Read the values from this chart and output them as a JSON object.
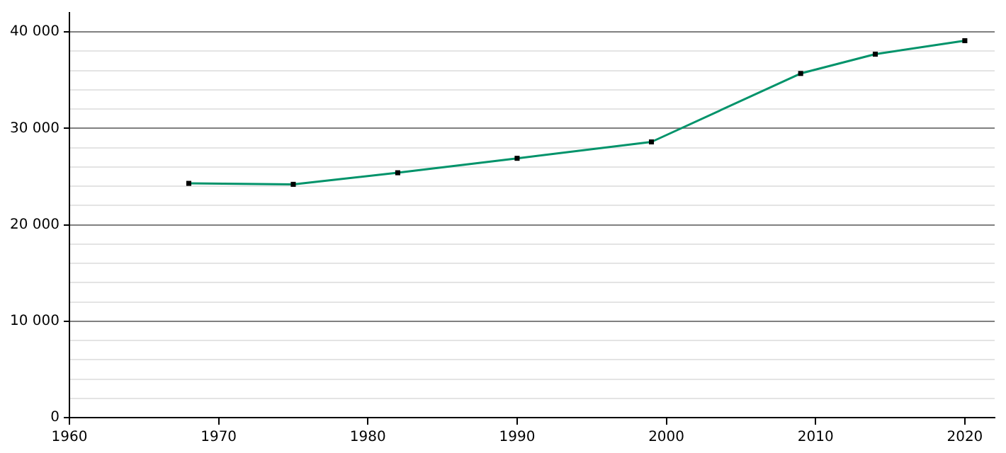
{
  "chart_data": {
    "type": "line",
    "x": [
      1968,
      1975,
      1982,
      1990,
      1999,
      2009,
      2014,
      2020
    ],
    "series": [
      {
        "color": "#00936a",
        "values": [
          24300,
          24200,
          25400,
          26900,
          28600,
          35700,
          37700,
          39100
        ]
      }
    ],
    "xlim": [
      1960,
      2022
    ],
    "xticks": [
      1960,
      1970,
      1980,
      1990,
      2000,
      2010,
      2020
    ],
    "ylim": [
      0,
      42000
    ],
    "yticks": [
      {
        "value": 0,
        "label": "0"
      },
      {
        "value": 2000,
        "label": null
      },
      {
        "value": 4000,
        "label": null
      },
      {
        "value": 6000,
        "label": null
      },
      {
        "value": 8000,
        "label": null
      },
      {
        "value": 10000,
        "label": "10 000"
      },
      {
        "value": 12000,
        "label": null
      },
      {
        "value": 14000,
        "label": null
      },
      {
        "value": 16000,
        "label": null
      },
      {
        "value": 18000,
        "label": null
      },
      {
        "value": 20000,
        "label": "20 000"
      },
      {
        "value": 22000,
        "label": null
      },
      {
        "value": 24000,
        "label": null
      },
      {
        "value": 26000,
        "label": null
      },
      {
        "value": 28000,
        "label": null
      },
      {
        "value": 30000,
        "label": "30 000"
      },
      {
        "value": 32000,
        "label": null
      },
      {
        "value": 34000,
        "label": null
      },
      {
        "value": 36000,
        "label": null
      },
      {
        "value": 38000,
        "label": null
      },
      {
        "value": 40000,
        "label": "40 000"
      }
    ],
    "grid": "y",
    "marker": "square",
    "line_style": "solid",
    "legend": false
  }
}
